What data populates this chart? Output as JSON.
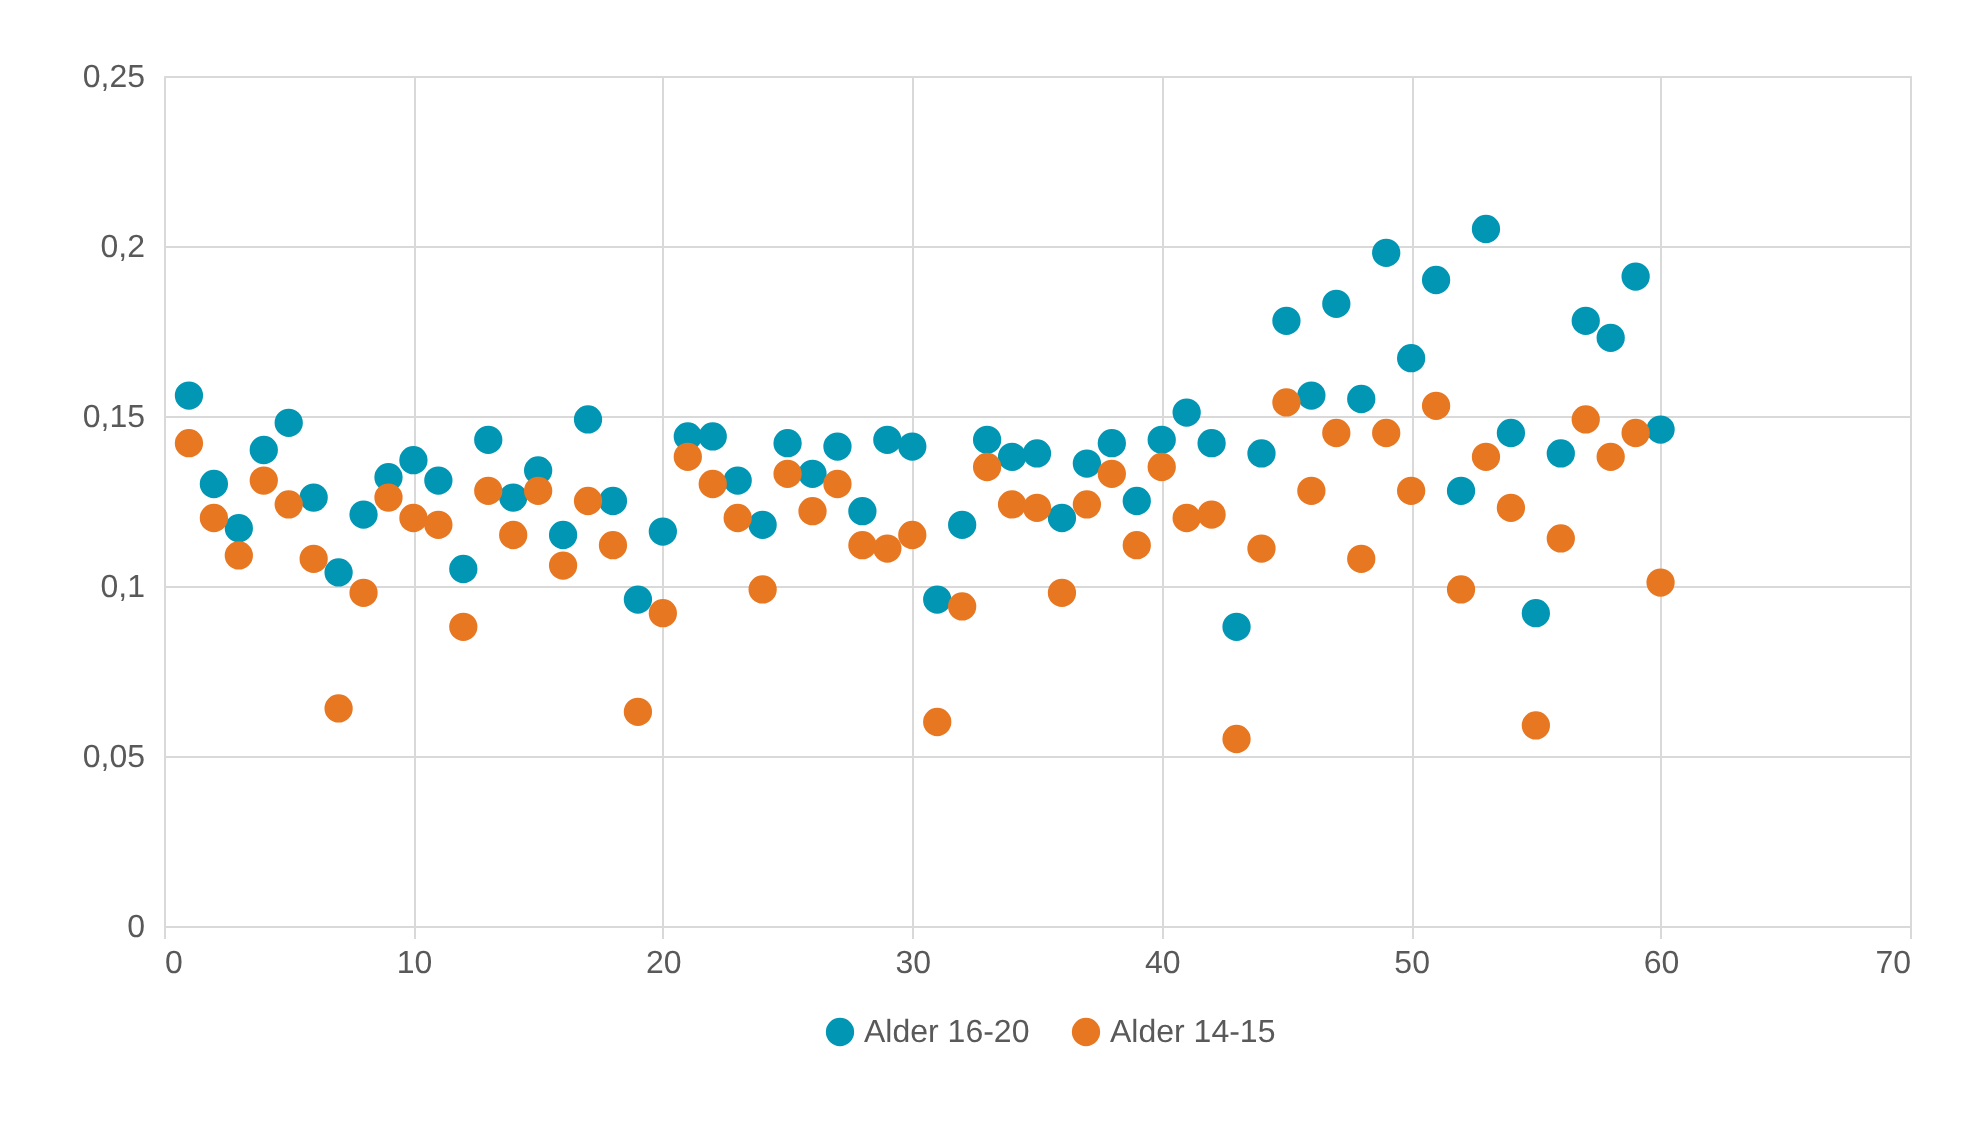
{
  "chart_data": {
    "type": "scatter",
    "x": [
      1,
      2,
      3,
      4,
      5,
      6,
      7,
      8,
      9,
      10,
      11,
      12,
      13,
      14,
      15,
      16,
      17,
      18,
      19,
      20,
      21,
      22,
      23,
      24,
      25,
      26,
      27,
      28,
      29,
      30,
      31,
      32,
      33,
      34,
      35,
      36,
      37,
      38,
      39,
      40,
      41,
      42,
      43,
      44,
      45,
      46,
      47,
      48,
      49,
      50,
      51,
      52,
      53,
      54,
      55,
      56,
      57,
      58,
      59,
      60
    ],
    "series": [
      {
        "name": "Alder 16-20",
        "color": "#0096b4",
        "values": [
          0.156,
          0.13,
          0.117,
          0.14,
          0.148,
          0.126,
          0.104,
          0.121,
          0.132,
          0.137,
          0.131,
          0.105,
          0.143,
          0.126,
          0.134,
          0.115,
          0.149,
          0.125,
          0.096,
          0.116,
          0.144,
          0.144,
          0.131,
          0.118,
          0.142,
          0.133,
          0.141,
          0.122,
          0.143,
          0.141,
          0.096,
          0.118,
          0.143,
          0.138,
          0.139,
          0.12,
          0.136,
          0.142,
          0.125,
          0.143,
          0.151,
          0.142,
          0.088,
          0.139,
          0.178,
          0.156,
          0.183,
          0.155,
          0.198,
          0.167,
          0.19,
          0.128,
          0.205,
          0.145,
          0.092,
          0.139,
          0.178,
          0.173,
          0.191,
          0.146
        ]
      },
      {
        "name": "Alder 14-15",
        "color": "#e87722",
        "values": [
          0.142,
          0.12,
          0.109,
          0.131,
          0.124,
          0.108,
          0.064,
          0.098,
          0.126,
          0.12,
          0.118,
          0.088,
          0.128,
          0.115,
          0.128,
          0.106,
          0.125,
          0.112,
          0.063,
          0.092,
          0.138,
          0.13,
          0.12,
          0.099,
          0.133,
          0.122,
          0.13,
          0.112,
          0.111,
          0.115,
          0.06,
          0.094,
          0.135,
          0.124,
          0.123,
          0.098,
          0.124,
          0.133,
          0.112,
          0.135,
          0.12,
          0.121,
          0.055,
          0.111,
          0.154,
          0.128,
          0.145,
          0.108,
          0.145,
          0.128,
          0.153,
          0.099,
          0.138,
          0.123,
          0.059,
          0.114,
          0.149,
          0.138,
          0.145,
          0.101
        ]
      }
    ],
    "xlim": [
      0,
      70
    ],
    "xticks": [
      0,
      10,
      20,
      30,
      40,
      50,
      60,
      70
    ],
    "ylim": [
      0,
      0.25
    ],
    "yticks": [
      0,
      {
        "value": 0.05,
        "label": "0,05"
      },
      {
        "value": 0.1,
        "label": "0,1"
      },
      {
        "value": 0.15,
        "label": "0,15"
      },
      {
        "value": 0.2,
        "label": "0,2"
      },
      {
        "value": 0.25,
        "label": "0,25"
      }
    ],
    "grid": true,
    "legend": "bottom",
    "marker": "circle"
  }
}
